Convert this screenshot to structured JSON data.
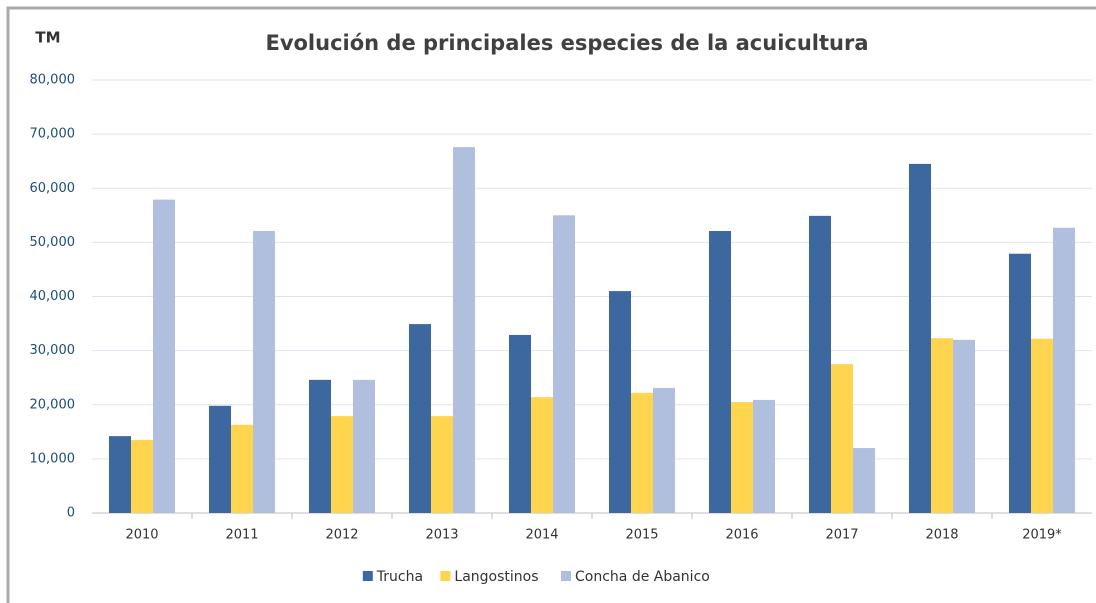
{
  "chart_data": {
    "type": "bar",
    "title": "Evolución de principales especies de la acuicultura",
    "y_label": "TM",
    "categories": [
      "2010",
      "2011",
      "2012",
      "2013",
      "2014",
      "2015",
      "2016",
      "2017",
      "2018",
      "2019*"
    ],
    "series": [
      {
        "name": "Trucha",
        "color": "#3d679f",
        "values": [
          14200,
          19800,
          24600,
          34900,
          32900,
          41000,
          52100,
          54900,
          64500,
          47900
        ]
      },
      {
        "name": "Langostinos",
        "color": "#ffd54f",
        "values": [
          13500,
          16300,
          17900,
          17900,
          21400,
          22200,
          20500,
          27500,
          32300,
          32200
        ]
      },
      {
        "name": "Concha de Abanico",
        "color": "#b0bfdd",
        "values": [
          57900,
          52100,
          24600,
          67600,
          55000,
          23100,
          20900,
          12000,
          32000,
          52700
        ]
      }
    ],
    "ylim": [
      0,
      80000
    ],
    "yticks": [
      0,
      {
        "value": 10000,
        "label": "10,000"
      },
      {
        "value": 20000,
        "label": "20,000"
      },
      {
        "value": 30000,
        "label": "30,000"
      },
      {
        "value": 40000,
        "label": "40,000"
      },
      {
        "value": 50000,
        "label": "50,000"
      },
      {
        "value": 60000,
        "label": "60,000"
      },
      {
        "value": 70000,
        "label": "70,000"
      },
      {
        "value": 80000,
        "label": "80,000"
      }
    ],
    "grid": true,
    "legend": "bottom"
  }
}
